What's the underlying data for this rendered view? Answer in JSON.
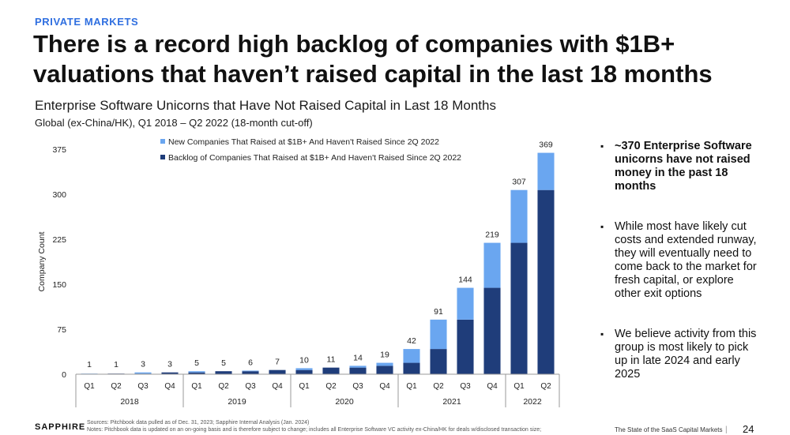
{
  "header": {
    "eyebrow": "PRIVATE MARKETS",
    "headline": "There is a record high backlog of companies with $1B+ valuations that haven’t raised capital in the last 18 months"
  },
  "chart_data": {
    "type": "bar",
    "stacked": true,
    "title": "Enterprise Software Unicorns that Have Not Raised Capital in Last 18 Months",
    "subtitle": "Global (ex-China/HK), Q1 2018 – Q2 2022 (18-month cut-off)",
    "ylabel": "Company Count",
    "xlabel": "",
    "ylim": [
      0,
      375
    ],
    "yticks": [
      0,
      75,
      150,
      225,
      300,
      375
    ],
    "categories": [
      "Q1",
      "Q2",
      "Q3",
      "Q4",
      "Q1",
      "Q2",
      "Q3",
      "Q4",
      "Q1",
      "Q2",
      "Q3",
      "Q4",
      "Q1",
      "Q2",
      "Q3",
      "Q4",
      "Q1",
      "Q2"
    ],
    "year_groups": [
      {
        "label": "2018",
        "count": 4
      },
      {
        "label": "2019",
        "count": 4
      },
      {
        "label": "2020",
        "count": 4
      },
      {
        "label": "2021",
        "count": 4
      },
      {
        "label": "2022",
        "count": 2
      }
    ],
    "series": [
      {
        "name": "Backlog of Companies That Raised at $1B+ And Haven't Raised Since 2Q 2022",
        "color": "#1f3d7a",
        "values": [
          0,
          1,
          1,
          3,
          3,
          5,
          5,
          7,
          7,
          11,
          11,
          14,
          19,
          42,
          91,
          144,
          219,
          307
        ]
      },
      {
        "name": "New Companies That Raised at $1B+ And Haven't Raised Since 2Q 2022",
        "color": "#6aa6f0",
        "values": [
          1,
          0,
          2,
          0,
          2,
          0,
          1,
          0,
          3,
          0,
          3,
          5,
          23,
          49,
          53,
          75,
          88,
          62
        ]
      }
    ],
    "totals": [
      1,
      1,
      3,
      3,
      5,
      5,
      6,
      7,
      10,
      11,
      14,
      19,
      42,
      91,
      144,
      219,
      307,
      369
    ],
    "legend_position": "top-left",
    "grid": false
  },
  "bullets": [
    "~370 Enterprise Software unicorns have not raised money in the past 18 months",
    "While most have likely cut costs and extended runway, they will eventually need to come back to the market for fresh capital, or explore other exit options",
    "We believe activity from this group is most likely to pick up in late 2024 and early 2025"
  ],
  "footer": {
    "logo": "SAPPHIRE",
    "sources": "Sources: Pitchbook data pulled as of Dec. 31, 2023; Sapphire Internal Analysis (Jan. 2024)",
    "notes": "Notes: Pitchbook data is updated on an on-going basis and is therefore subject to change; includes all Enterprise Software VC activity ex-China/HK for deals w/disclosed transaction size;",
    "deck_title": "The State of the SaaS Capital Markets",
    "separator": "|",
    "page_number": "24"
  }
}
